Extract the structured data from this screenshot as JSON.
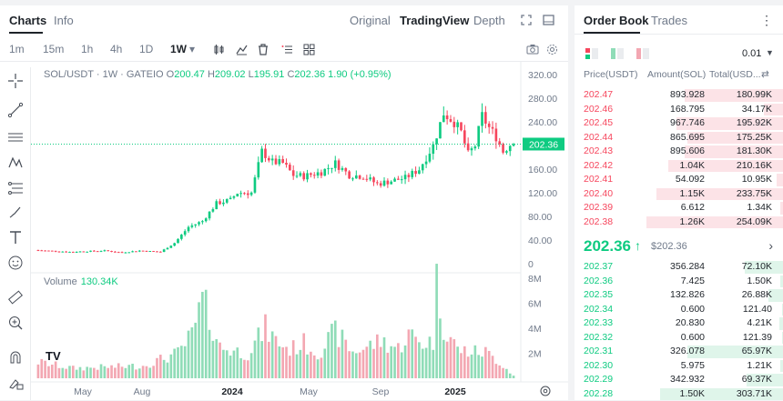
{
  "header": {
    "tabs": [
      "Charts",
      "Info"
    ],
    "views": [
      "Original",
      "TradingView",
      "Depth"
    ]
  },
  "toolbar": {
    "timeframes": [
      "1m",
      "15m",
      "1h",
      "4h",
      "1D"
    ],
    "active_timeframe": "1W",
    "active_indicator": "▾"
  },
  "legend": {
    "symbol": "SOL/USDT · 1W · GATEIO",
    "o_label": "O",
    "o": "200.47",
    "h_label": "H",
    "h": "209.02",
    "l_label": "L",
    "l": "195.91",
    "c_label": "C",
    "c": "202.36",
    "change": "1.90 (+0.95%)"
  },
  "volume_legend": {
    "label": "Volume",
    "value": "130.34K"
  },
  "price_axis": [
    "320.00",
    "280.00",
    "240.00",
    "202.36",
    "160.00",
    "120.00",
    "80.00",
    "40.00",
    "0"
  ],
  "volume_axis": [
    "8M",
    "6M",
    "4M",
    "2M"
  ],
  "time_axis": [
    "May",
    "Aug",
    "2024",
    "May",
    "Sep",
    "2025"
  ],
  "tv_logo": "TV",
  "orderbook": {
    "tabs": [
      "Order Book",
      "Trades"
    ],
    "precision": "0.01",
    "headers": {
      "price": "Price(USDT)",
      "amount": "Amount(SOL)",
      "total": "Total(USD..."
    },
    "asks": [
      {
        "price": "202.47",
        "amount": "893.928",
        "total": "180.99K",
        "depth": 0.72
      },
      {
        "price": "202.46",
        "amount": "168.795",
        "total": "34.17K",
        "depth": 0.14
      },
      {
        "price": "202.45",
        "amount": "967.746",
        "total": "195.92K",
        "depth": 0.78
      },
      {
        "price": "202.44",
        "amount": "865.695",
        "total": "175.25K",
        "depth": 0.7
      },
      {
        "price": "202.43",
        "amount": "895.606",
        "total": "181.30K",
        "depth": 0.72
      },
      {
        "price": "202.42",
        "amount": "1.04K",
        "total": "210.16K",
        "depth": 0.84
      },
      {
        "price": "202.41",
        "amount": "54.092",
        "total": "10.95K",
        "depth": 0.05
      },
      {
        "price": "202.40",
        "amount": "1.15K",
        "total": "233.75K",
        "depth": 0.93
      },
      {
        "price": "202.39",
        "amount": "6.612",
        "total": "1.34K",
        "depth": 0.02
      },
      {
        "price": "202.38",
        "amount": "1.26K",
        "total": "254.09K",
        "depth": 1.0
      }
    ],
    "mid_price": "202.36",
    "mid_arrow": "↑",
    "mid_usd": "$202.36",
    "bids": [
      {
        "price": "202.37",
        "amount": "356.284",
        "total": "72.10K",
        "depth": 0.28
      },
      {
        "price": "202.36",
        "amount": "7.425",
        "total": "1.50K",
        "depth": 0.02
      },
      {
        "price": "202.35",
        "amount": "132.826",
        "total": "26.88K",
        "depth": 0.11
      },
      {
        "price": "202.34",
        "amount": "0.600",
        "total": "121.40",
        "depth": 0.01
      },
      {
        "price": "202.33",
        "amount": "20.830",
        "total": "4.21K",
        "depth": 0.03
      },
      {
        "price": "202.32",
        "amount": "0.600",
        "total": "121.39",
        "depth": 0.01
      },
      {
        "price": "202.31",
        "amount": "326.078",
        "total": "65.97K",
        "depth": 0.7
      },
      {
        "price": "202.30",
        "amount": "5.975",
        "total": "1.21K",
        "depth": 0.02
      },
      {
        "price": "202.29",
        "amount": "342.932",
        "total": "69.37K",
        "depth": 0.27
      },
      {
        "price": "202.28",
        "amount": "1.50K",
        "total": "303.71K",
        "depth": 0.9
      }
    ]
  },
  "colors": {
    "up": "#0ecb81",
    "down": "#f6465d",
    "up_vol": "#8fdcb7",
    "down_vol": "#f3a7b2"
  },
  "chart_data": {
    "type": "candlestick",
    "price_range": [
      0,
      320
    ],
    "volume_range": [
      0,
      8000000
    ],
    "last_price": 202.36,
    "anchors": [
      [
        0,
        23
      ],
      [
        10,
        20
      ],
      [
        20,
        22
      ],
      [
        25,
        19
      ],
      [
        30,
        22
      ],
      [
        36,
        20
      ],
      [
        40,
        35
      ],
      [
        44,
        62
      ],
      [
        48,
        72
      ],
      [
        52,
        102
      ],
      [
        56,
        108
      ],
      [
        58,
        120
      ],
      [
        62,
        120
      ],
      [
        65,
        190
      ],
      [
        68,
        172
      ],
      [
        71,
        170
      ],
      [
        74,
        150
      ],
      [
        77,
        148
      ],
      [
        82,
        155
      ],
      [
        86,
        170
      ],
      [
        90,
        150
      ],
      [
        94,
        148
      ],
      [
        98,
        135
      ],
      [
        102,
        140
      ],
      [
        106,
        145
      ],
      [
        110,
        160
      ],
      [
        114,
        200
      ],
      [
        117,
        255
      ],
      [
        120,
        240
      ],
      [
        122,
        222
      ],
      [
        124,
        185
      ],
      [
        126,
        200
      ],
      [
        128,
        250
      ],
      [
        130,
        230
      ],
      [
        132,
        215
      ],
      [
        134,
        190
      ],
      [
        136,
        202
      ]
    ],
    "volume_anchors": [
      [
        0,
        1.3
      ],
      [
        10,
        0.8
      ],
      [
        20,
        0.9
      ],
      [
        30,
        1.0
      ],
      [
        40,
        2.0
      ],
      [
        44,
        3.4
      ],
      [
        47,
        6.1
      ],
      [
        50,
        4.2
      ],
      [
        52,
        2.5
      ],
      [
        56,
        2.2
      ],
      [
        60,
        2.0
      ],
      [
        65,
        4.0
      ],
      [
        68,
        3.0
      ],
      [
        72,
        2.3
      ],
      [
        76,
        2.8
      ],
      [
        80,
        2.0
      ],
      [
        85,
        3.7
      ],
      [
        90,
        2.1
      ],
      [
        94,
        2.5
      ],
      [
        98,
        3.0
      ],
      [
        103,
        2.4
      ],
      [
        106,
        3.5
      ],
      [
        110,
        2.8
      ],
      [
        113,
        3.0
      ],
      [
        114,
        7.5
      ],
      [
        116,
        4.3
      ],
      [
        120,
        2.3
      ],
      [
        124,
        2.1
      ],
      [
        128,
        2.1
      ],
      [
        132,
        1.3
      ],
      [
        136,
        0.2
      ]
    ]
  }
}
